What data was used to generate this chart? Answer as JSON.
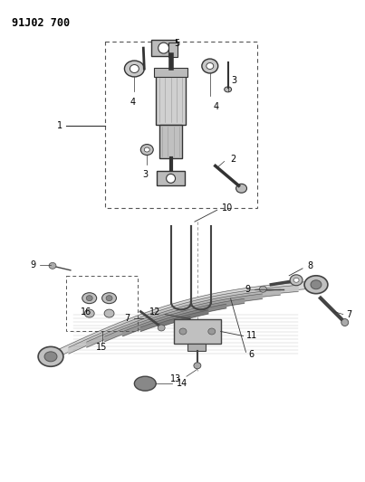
{
  "title": "91J02 700",
  "bg_color": "#ffffff",
  "fig_width": 4.03,
  "fig_height": 5.33,
  "dpi": 100
}
